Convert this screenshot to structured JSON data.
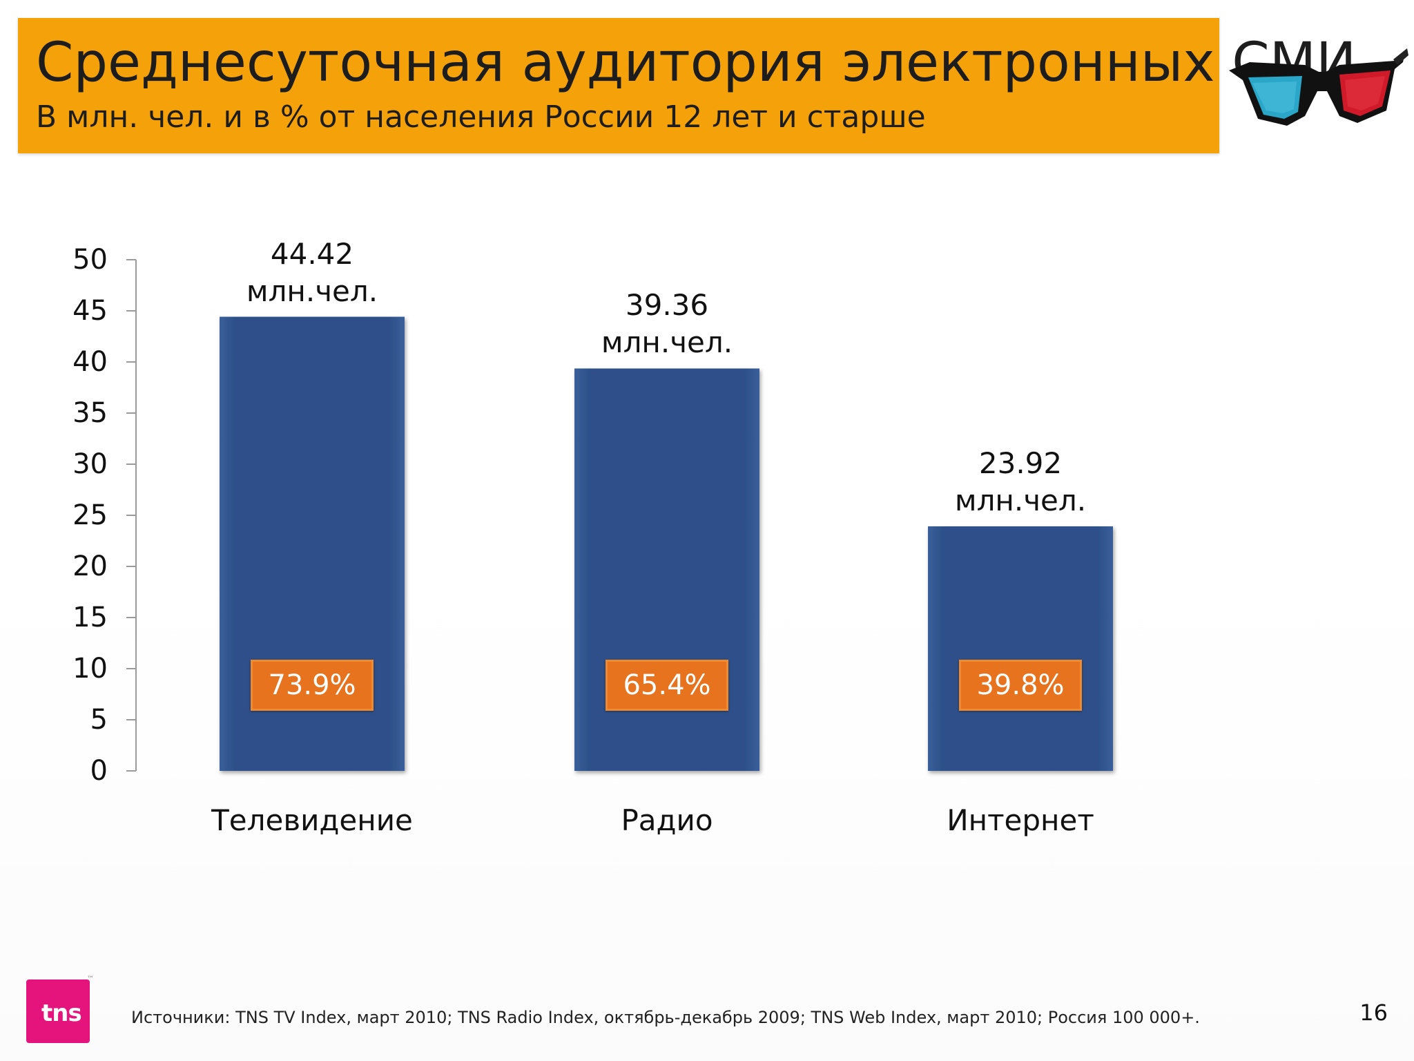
{
  "header": {
    "title": "Среднесуточная аудитория электронных СМИ",
    "subtitle": "В млн. чел. и в  % от населения России 12 лет и старше"
  },
  "colors": {
    "header_band": "#f5a20a",
    "bar": "#2d5089",
    "percent_box": "#e8731e",
    "logo": "#e5137c"
  },
  "chart_data": {
    "type": "bar",
    "categories": [
      "Телевидение",
      "Радио",
      "Интернет"
    ],
    "values": [
      44.42,
      39.36,
      23.92
    ],
    "value_labels": [
      "44.42",
      "39.36",
      "23.92"
    ],
    "value_unit": "млн.чел.",
    "percent_labels": [
      "73.9%",
      "65.4%",
      "39.8%"
    ],
    "ylim": [
      0,
      50
    ],
    "yticks": [
      0,
      5,
      10,
      15,
      20,
      25,
      30,
      35,
      40,
      45,
      50
    ],
    "grid": false,
    "legend": "none"
  },
  "footer": {
    "logo_text": "tns",
    "source": "Источники: TNS TV Index, март 2010; TNS Radio Index, октябрь-декабрь 2009;  TNS Web Index, март 2010; Россия 100 000+.",
    "page_number": "16"
  }
}
